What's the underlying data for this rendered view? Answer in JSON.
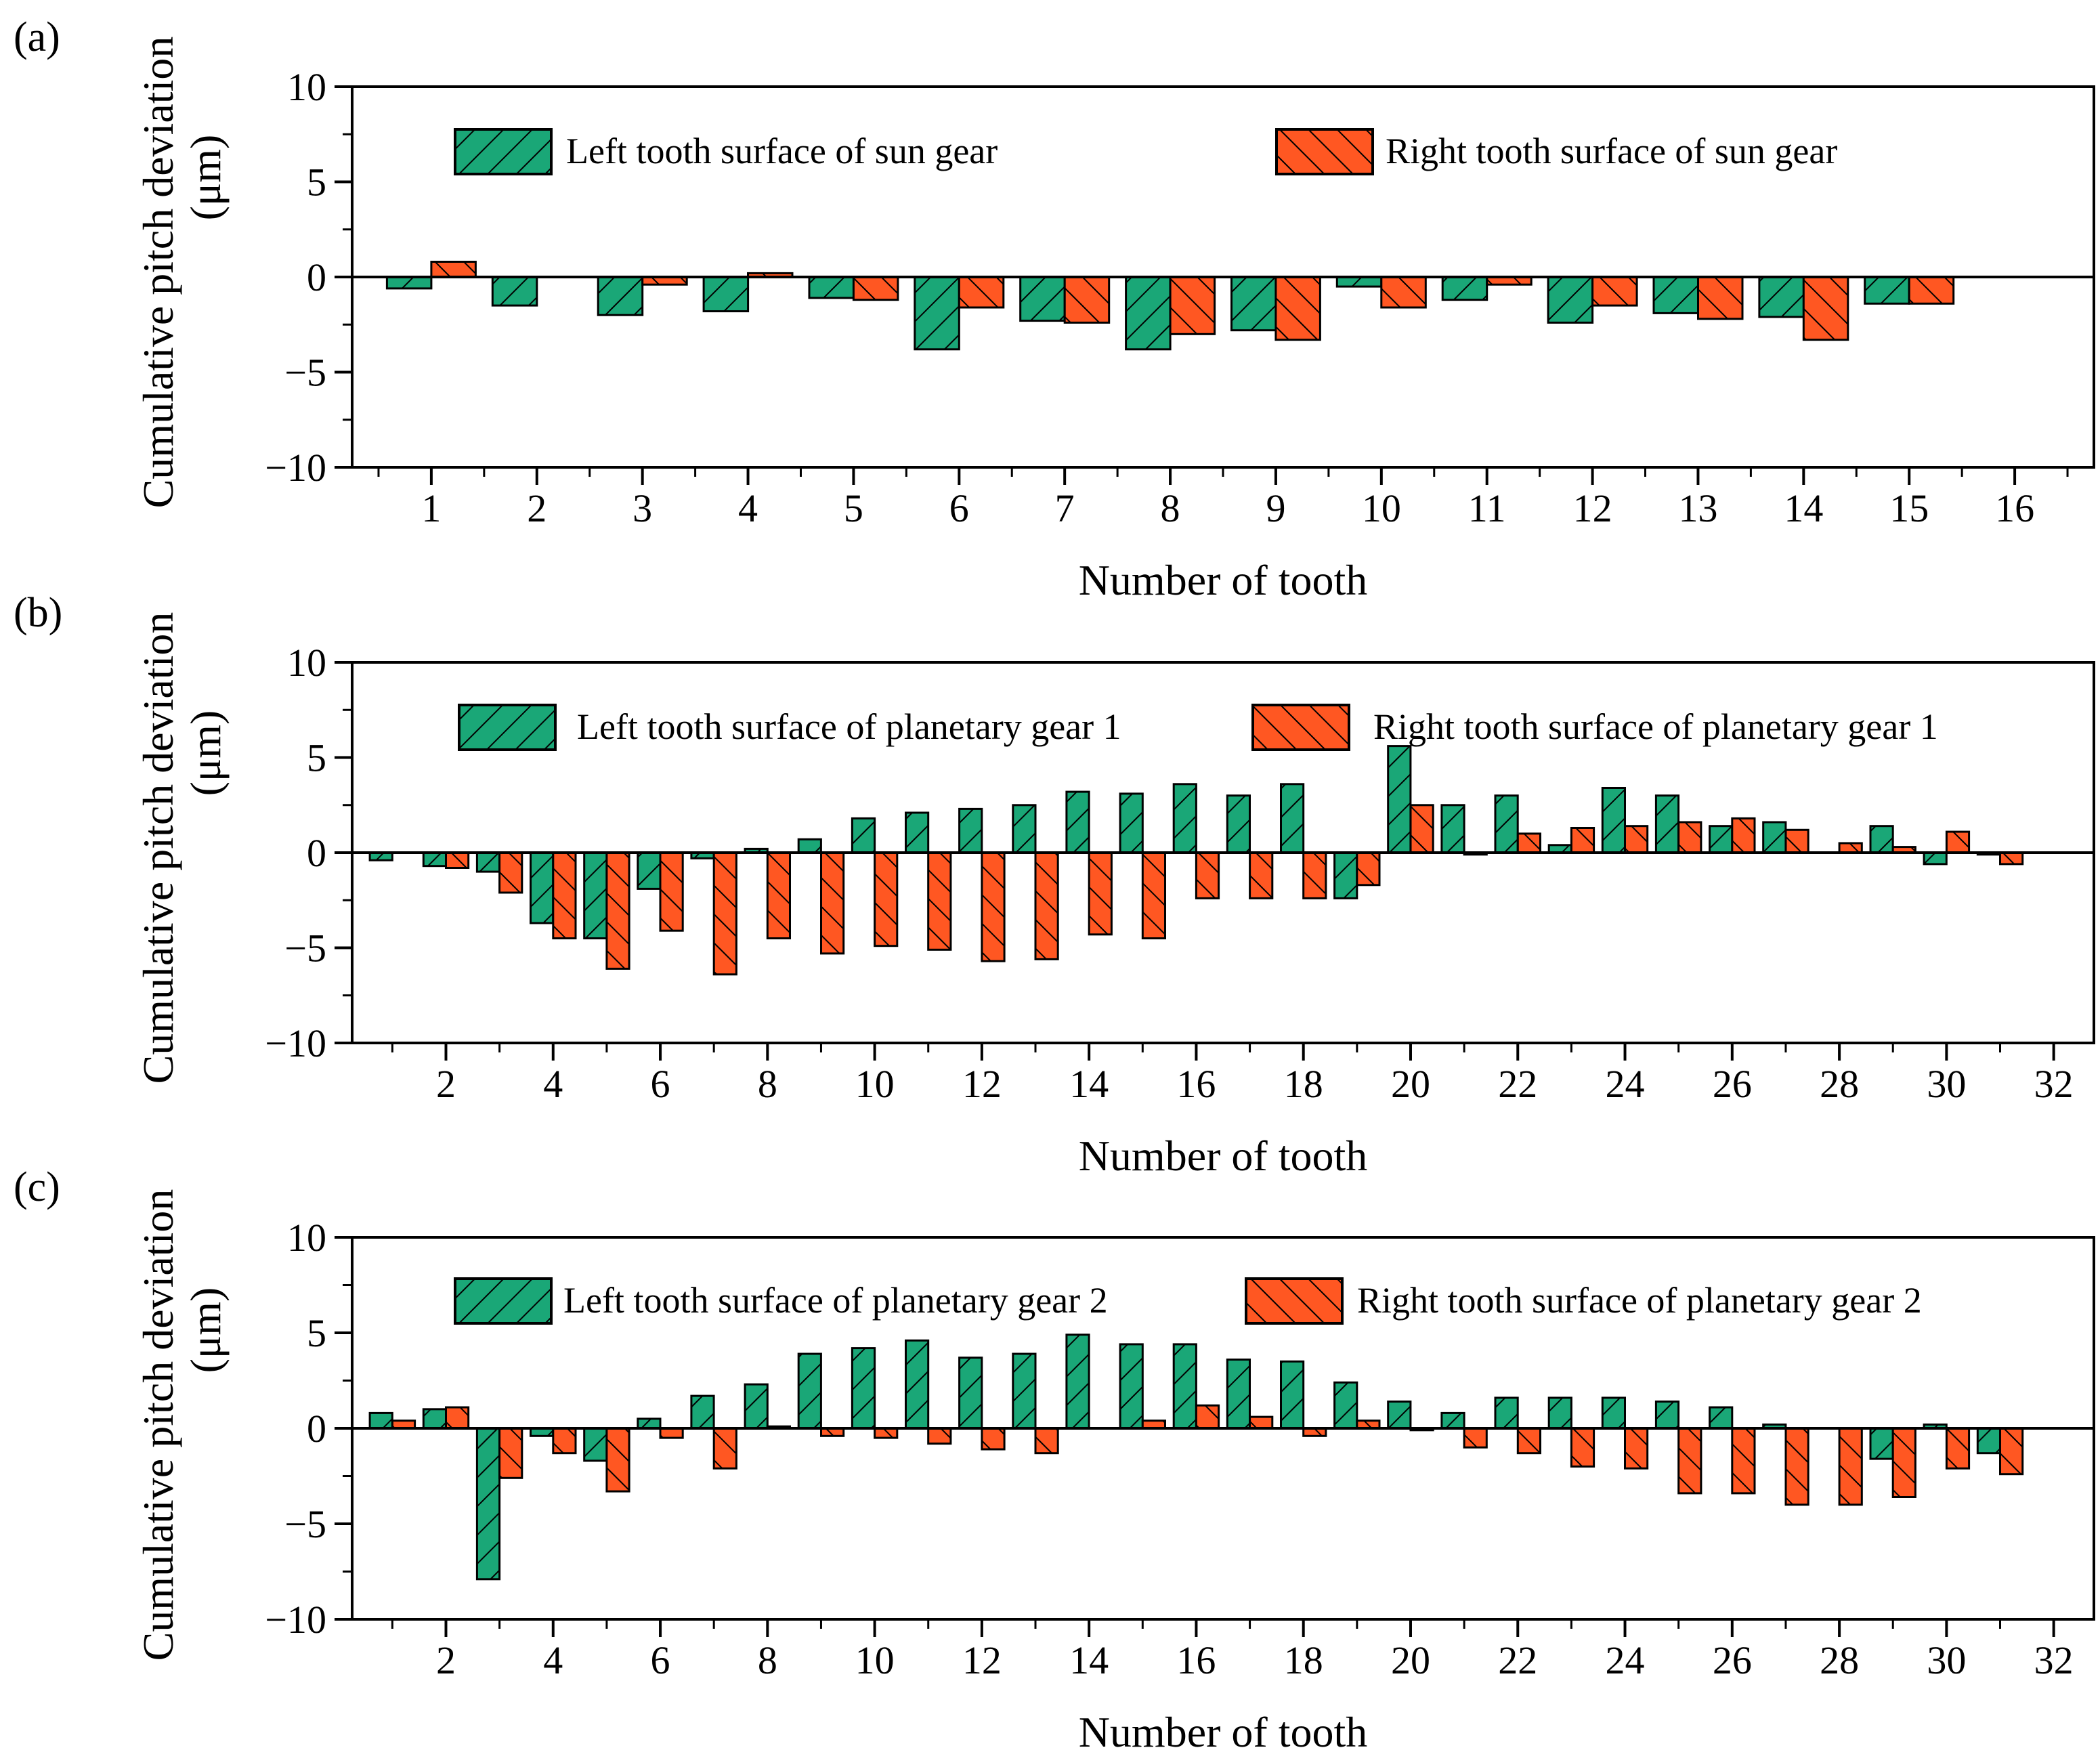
{
  "figure": {
    "colors": {
      "left": "#1aa777",
      "right": "#ff5722",
      "edge": "#000000"
    }
  },
  "chart_data": [
    {
      "type": "bar",
      "panel_label": "(a)",
      "xlabel": "Number of tooth",
      "ylabel_line1": "Cumulative pitch deviation",
      "ylabel_line2": "(μm)",
      "ylim": [
        -10,
        10
      ],
      "yticks": [
        -10,
        -5,
        0,
        5,
        10
      ],
      "ytick_labels": [
        "−10",
        "−5",
        "0",
        "5",
        "10"
      ],
      "categories": [
        "1",
        "2",
        "3",
        "4",
        "5",
        "6",
        "7",
        "8",
        "9",
        "10",
        "11",
        "12",
        "13",
        "14",
        "15",
        "16"
      ],
      "xticks": [
        "1",
        "2",
        "3",
        "4",
        "5",
        "6",
        "7",
        "8",
        "9",
        "10",
        "11",
        "12",
        "13",
        "14",
        "15",
        "16"
      ],
      "legend_position": "top",
      "series": [
        {
          "name": "Left tooth surface of sun gear",
          "values": [
            -0.6,
            -1.5,
            -2.0,
            -1.8,
            -1.1,
            -3.8,
            -2.3,
            -3.8,
            -2.8,
            -0.5,
            -1.2,
            -2.4,
            -1.9,
            -2.1,
            -1.4,
            0
          ]
        },
        {
          "name": "Right tooth surface of sun gear",
          "values": [
            0.8,
            0,
            -0.4,
            0.2,
            -1.2,
            -1.6,
            -2.4,
            -3.0,
            -3.3,
            -1.6,
            -0.4,
            -1.5,
            -2.2,
            -3.3,
            -1.4,
            0
          ]
        }
      ]
    },
    {
      "type": "bar",
      "panel_label": "(b)",
      "xlabel": "Number of tooth",
      "ylabel_line1": "Cumulative pitch deviation",
      "ylabel_line2": "(μm)",
      "ylim": [
        -10,
        10
      ],
      "yticks": [
        -10,
        -5,
        0,
        5,
        10
      ],
      "ytick_labels": [
        "−10",
        "−5",
        "0",
        "5",
        "10"
      ],
      "categories": [
        "1",
        "2",
        "3",
        "4",
        "5",
        "6",
        "7",
        "8",
        "9",
        "10",
        "11",
        "12",
        "13",
        "14",
        "15",
        "16",
        "17",
        "18",
        "19",
        "20",
        "21",
        "22",
        "23",
        "24",
        "25",
        "26",
        "27",
        "28",
        "29",
        "30",
        "31",
        "32"
      ],
      "xticks": [
        "2",
        "4",
        "6",
        "8",
        "10",
        "12",
        "14",
        "16",
        "18",
        "20",
        "22",
        "24",
        "26",
        "28",
        "30",
        "32"
      ],
      "legend_position": "top",
      "series": [
        {
          "name": "Left tooth surface of planetary gear 1",
          "values": [
            -0.4,
            -0.7,
            -1.0,
            -3.7,
            -4.5,
            -1.9,
            -0.3,
            0.2,
            0.7,
            1.8,
            2.1,
            2.3,
            2.5,
            3.2,
            3.1,
            3.6,
            3.0,
            3.6,
            -2.4,
            5.6,
            2.5,
            3.0,
            0.4,
            3.4,
            3.0,
            1.4,
            1.6,
            0,
            1.4,
            -0.6,
            -0.1,
            0
          ]
        },
        {
          "name": "Right tooth surface of planetary gear 1",
          "values": [
            0,
            -0.8,
            -2.1,
            -4.5,
            -6.1,
            -4.1,
            -6.4,
            -4.5,
            -5.3,
            -4.9,
            -5.1,
            -5.7,
            -5.6,
            -4.3,
            -4.5,
            -2.4,
            -2.4,
            -2.4,
            -1.7,
            2.5,
            -0.1,
            1.0,
            1.3,
            1.4,
            1.6,
            1.8,
            1.2,
            0.5,
            0.3,
            1.1,
            -0.6,
            0
          ]
        }
      ]
    },
    {
      "type": "bar",
      "panel_label": "(c)",
      "xlabel": "Number of tooth",
      "ylabel_line1": "Cumulative pitch deviation",
      "ylabel_line2": "(μm)",
      "ylim": [
        -10,
        10
      ],
      "yticks": [
        -10,
        -5,
        0,
        5,
        10
      ],
      "ytick_labels": [
        "−10",
        "−5",
        "0",
        "5",
        "10"
      ],
      "categories": [
        "1",
        "2",
        "3",
        "4",
        "5",
        "6",
        "7",
        "8",
        "9",
        "10",
        "11",
        "12",
        "13",
        "14",
        "15",
        "16",
        "17",
        "18",
        "19",
        "20",
        "21",
        "22",
        "23",
        "24",
        "25",
        "26",
        "27",
        "28",
        "29",
        "30",
        "31",
        "32"
      ],
      "xticks": [
        "2",
        "4",
        "6",
        "8",
        "10",
        "12",
        "14",
        "16",
        "18",
        "20",
        "22",
        "24",
        "26",
        "28",
        "30",
        "32"
      ],
      "legend_position": "top",
      "series": [
        {
          "name": "Left tooth surface of planetary gear 2",
          "values": [
            0.8,
            1.0,
            -7.9,
            -0.4,
            -1.7,
            0.5,
            1.7,
            2.3,
            3.9,
            4.2,
            4.6,
            3.7,
            3.9,
            4.9,
            4.4,
            4.4,
            3.6,
            3.5,
            2.4,
            1.4,
            0.8,
            1.6,
            1.6,
            1.6,
            1.4,
            1.1,
            0.2,
            0,
            -1.6,
            0.2,
            -1.3,
            0
          ]
        },
        {
          "name": "Right tooth surface of planetary gear 2",
          "values": [
            0.4,
            1.1,
            -2.6,
            -1.3,
            -3.3,
            -0.5,
            -2.1,
            0.1,
            -0.4,
            -0.5,
            -0.8,
            -1.1,
            -1.3,
            0,
            0.4,
            1.2,
            0.6,
            -0.4,
            0.4,
            -0.1,
            -1.0,
            -1.3,
            -2.0,
            -2.1,
            -3.4,
            -3.4,
            -4.0,
            -4.0,
            -3.6,
            -2.1,
            -2.4,
            0
          ]
        }
      ]
    }
  ]
}
